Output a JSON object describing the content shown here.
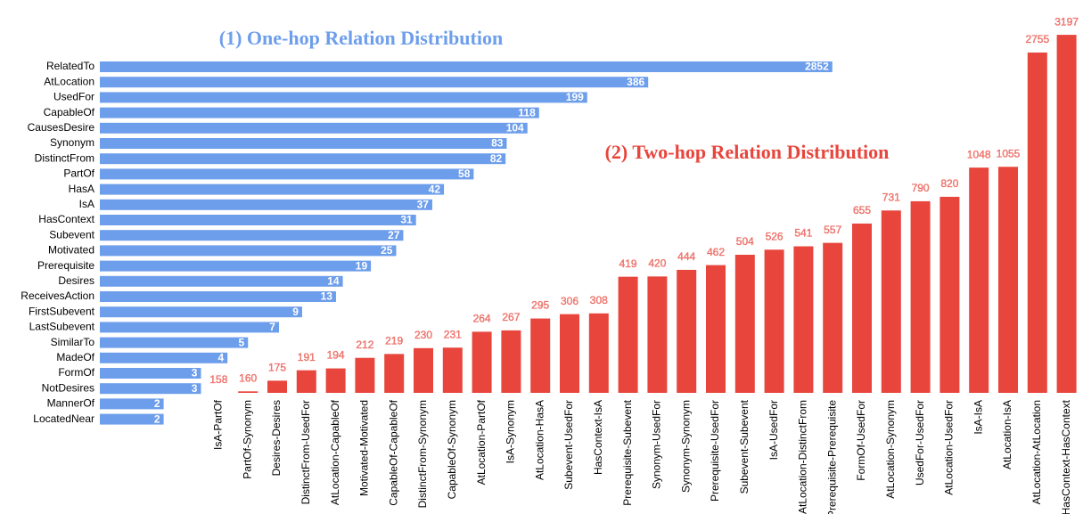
{
  "chart_data": [
    {
      "type": "hbar",
      "title": "(1) One-hop Relation Distribution",
      "color": "#6d9eeb",
      "log": true,
      "xlim": [
        1,
        3000
      ],
      "categories": [
        "RelatedTo",
        "AtLocation",
        "UsedFor",
        "CapableOf",
        "CausesDesire",
        "Synonym",
        "DistinctFrom",
        "PartOf",
        "HasA",
        "IsA",
        "HasContext",
        "Subevent",
        "Motivated",
        "Prerequisite",
        "Desires",
        "ReceivesAction",
        "FirstSubevent",
        "LastSubevent",
        "SimilarTo",
        "MadeOf",
        "FormOf",
        "NotDesires",
        "MannerOf",
        "LocatedNear"
      ],
      "values": [
        2852,
        386,
        199,
        118,
        104,
        83,
        82,
        58,
        42,
        37,
        31,
        27,
        25,
        19,
        14,
        13,
        9,
        7,
        5,
        4,
        3,
        3,
        2,
        2
      ]
    },
    {
      "type": "bar",
      "title": "(2) Two-hop Relation Distribution",
      "color": "#e8453c",
      "log": true,
      "ylim": [
        158,
        3500
      ],
      "categories": [
        "IsA-PartOf",
        "PartOf-Synonym",
        "Desires-Desires",
        "DistinctFrom-UsedFor",
        "AtLocation-CapableOf",
        "Motivated-Motivated",
        "CapableOf-CapableOf",
        "DistinctFrom-Synonym",
        "CapableOf-Synonym",
        "AtLocation-PartOf",
        "IsA-Synonym",
        "AtLocation-HasA",
        "Subevent-UsedFor",
        "HasContext-IsA",
        "Prerequisite-Subevent",
        "Synonym-UsedFor",
        "Synonym-Synonym",
        "Prerequisite-UsedFor",
        "Subevent-Subevent",
        "IsA-UsedFor",
        "AtLocation-DistinctFrom",
        "Prerequisite-Prerequisite",
        "FormOf-UsedFor",
        "AtLocation-Synonym",
        "UsedFor-UsedFor",
        "AtLocation-UsedFor",
        "IsA-IsA",
        "AtLocation-IsA",
        "AtLocation-AtLocation",
        "HasContext-HasContext"
      ],
      "values": [
        158,
        160,
        175,
        191,
        194,
        212,
        219,
        230,
        231,
        264,
        267,
        295,
        306,
        308,
        419,
        420,
        444,
        462,
        504,
        526,
        541,
        557,
        655,
        731,
        790,
        820,
        1048,
        1055,
        2755,
        3197
      ]
    }
  ]
}
